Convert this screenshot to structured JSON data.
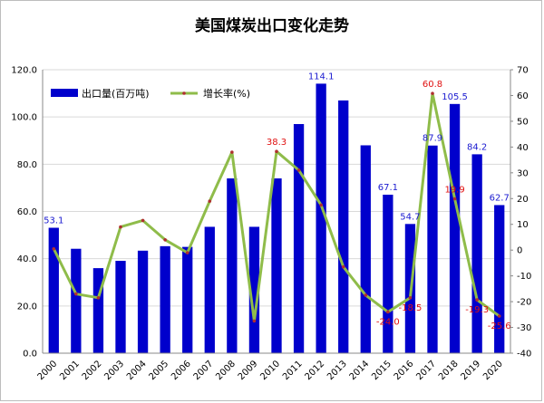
{
  "chart_data": {
    "type": "bar+line",
    "title": "美国煤炭出口变化走势",
    "categories": [
      "2000",
      "2001",
      "2002",
      "2003",
      "2004",
      "2005",
      "2006",
      "2007",
      "2008",
      "2009",
      "2010",
      "2011",
      "2012",
      "2013",
      "2014",
      "2015",
      "2016",
      "2017",
      "2018",
      "2019",
      "2020"
    ],
    "series": [
      {
        "name": "出口量(百万吨)",
        "type": "bar",
        "axis": "left",
        "color": "#0000cc",
        "values": [
          53.1,
          44.2,
          36.0,
          39.1,
          43.4,
          45.3,
          45.0,
          53.5,
          74.0,
          53.5,
          74.0,
          97.0,
          114.1,
          107.0,
          88.0,
          67.1,
          54.7,
          87.9,
          105.5,
          84.2,
          62.7
        ]
      },
      {
        "name": "增长率(%)",
        "type": "line",
        "axis": "right",
        "color": "#8fbc4a",
        "values": [
          0.5,
          -17.0,
          -18.5,
          9.0,
          11.5,
          4.0,
          -1.0,
          19.0,
          38.0,
          -27.5,
          38.3,
          31.0,
          17.5,
          -6.5,
          -17.5,
          -24.0,
          -18.5,
          60.8,
          19.9,
          -19.3,
          -25.6
        ]
      }
    ],
    "bar_labels": [
      {
        "index": 0,
        "text": "53.1"
      },
      {
        "index": 12,
        "text": "114.1"
      },
      {
        "index": 15,
        "text": "67.1"
      },
      {
        "index": 16,
        "text": "54.7"
      },
      {
        "index": 17,
        "text": "87.9"
      },
      {
        "index": 18,
        "text": "105.5"
      },
      {
        "index": 19,
        "text": "84.2"
      },
      {
        "index": 20,
        "text": "62.7"
      }
    ],
    "line_labels": [
      {
        "index": 10,
        "text": "38.3"
      },
      {
        "index": 15,
        "text": "-24.0"
      },
      {
        "index": 16,
        "text": "-18.5"
      },
      {
        "index": 17,
        "text": "60.8"
      },
      {
        "index": 18,
        "text": "19.9"
      },
      {
        "index": 19,
        "text": "-19.3"
      },
      {
        "index": 20,
        "text": "-25.6"
      }
    ],
    "y_left": {
      "min": 0,
      "max": 120,
      "step": 20,
      "decimals": 1
    },
    "y_right": {
      "min": -40,
      "max": 70,
      "step": 10,
      "decimals": 0
    },
    "grid": true,
    "legend": "top-left"
  }
}
